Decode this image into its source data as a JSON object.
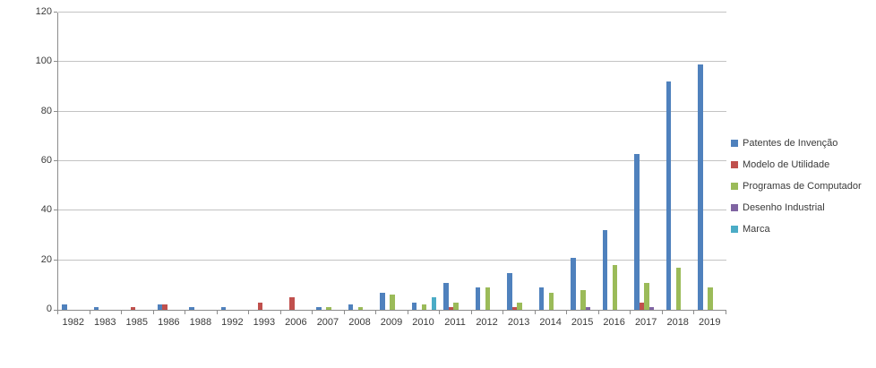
{
  "chart_data": {
    "type": "bar",
    "title": "",
    "xlabel": "",
    "ylabel": "",
    "categories": [
      "1982",
      "1983",
      "1985",
      "1986",
      "1988",
      "1992",
      "1993",
      "2006",
      "2007",
      "2008",
      "2009",
      "2010",
      "2011",
      "2012",
      "2013",
      "2014",
      "2015",
      "2016",
      "2017",
      "2018",
      "2019"
    ],
    "series": [
      {
        "name": "Patentes de Invenção",
        "color": "#4F81BD",
        "values": [
          2,
          1,
          0,
          2,
          1,
          1,
          0,
          0,
          1,
          2,
          7,
          3,
          11,
          9,
          15,
          9,
          21,
          32,
          63,
          92,
          99
        ]
      },
      {
        "name": "Modelo de Utilidade",
        "color": "#C0504D",
        "values": [
          0,
          0,
          1,
          2,
          0,
          0,
          3,
          5,
          0,
          0,
          0,
          0,
          1,
          0,
          1,
          0,
          0,
          0,
          3,
          0,
          0
        ]
      },
      {
        "name": "Programas de Computador",
        "color": "#9BBB59",
        "values": [
          0,
          0,
          0,
          0,
          0,
          0,
          0,
          0,
          1,
          1,
          6,
          2,
          3,
          9,
          3,
          7,
          8,
          18,
          11,
          17,
          9
        ]
      },
      {
        "name": "Desenho Industrial",
        "color": "#8064A2",
        "values": [
          0,
          0,
          0,
          0,
          0,
          0,
          0,
          0,
          0,
          0,
          0,
          0,
          0,
          0,
          0,
          0,
          1,
          0,
          1,
          0,
          0
        ]
      },
      {
        "name": "Marca",
        "color": "#4BACC6",
        "values": [
          0,
          0,
          0,
          0,
          0,
          0,
          0,
          0,
          0,
          0,
          0,
          5,
          0,
          0,
          0,
          0,
          0,
          0,
          0,
          0,
          0
        ]
      }
    ],
    "ylim": [
      0,
      120
    ],
    "yticks": [
      0,
      20,
      40,
      60,
      80,
      100,
      120
    ],
    "grid": true,
    "legend_position": "right",
    "colors": {
      "gridline": "#c3c3c3",
      "axis": "#8c8c8c",
      "text": "#3a3a3a",
      "background": "#ffffff"
    }
  }
}
